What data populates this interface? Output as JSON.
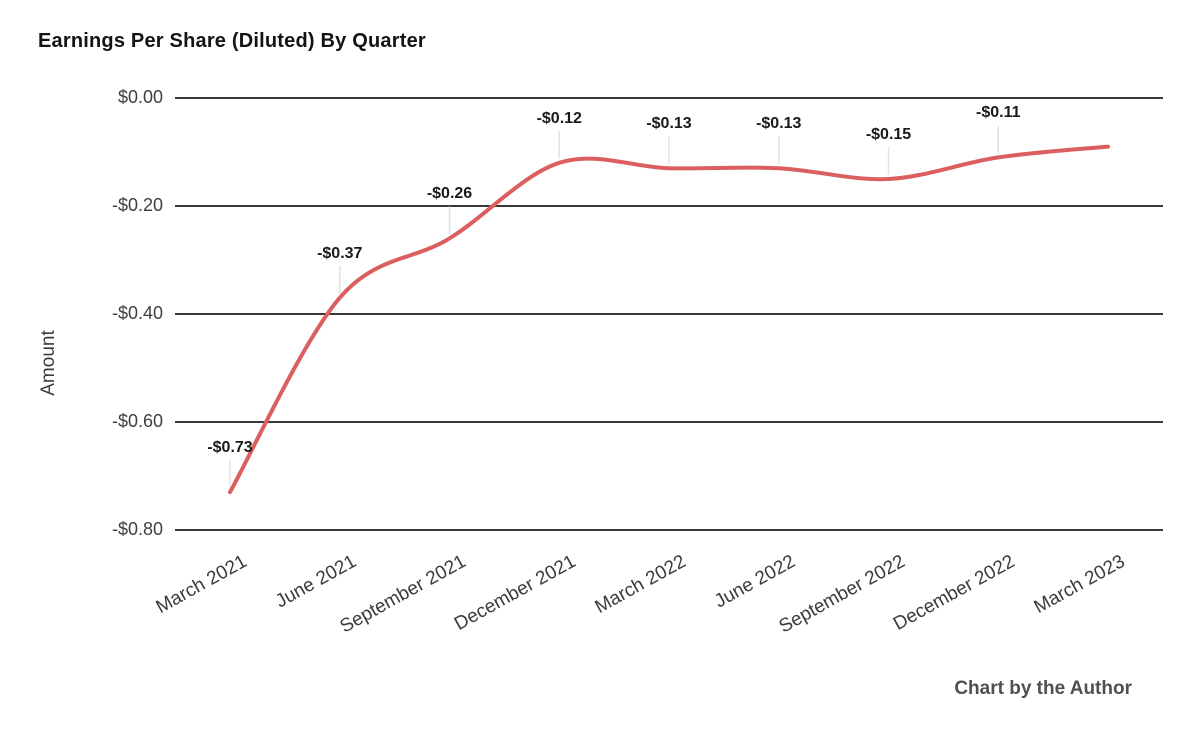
{
  "chart": {
    "title": "Earnings Per Share (Diluted) By Quarter",
    "y_axis_title": "Amount",
    "credit": "Chart by the Author",
    "colors": {
      "line": "#db5f5f",
      "gridline": "#383838",
      "leader_line": "#e2e2e2",
      "axis_text": "#3f3f3f",
      "data_label_text": "#1a1a1a"
    }
  },
  "chart_data": {
    "type": "line",
    "title": "Earnings Per Share (Diluted) By Quarter",
    "xlabel": "",
    "ylabel": "Amount",
    "categories": [
      "March 2021",
      "June 2021",
      "September 2021",
      "December 2021",
      "March 2022",
      "June 2022",
      "September 2022",
      "December 2022",
      "March 2023"
    ],
    "values": [
      -0.73,
      -0.37,
      -0.26,
      -0.12,
      -0.13,
      -0.13,
      -0.15,
      -0.11,
      -0.09
    ],
    "data_labels": [
      "-$0.73",
      "-$0.37",
      "-$0.26",
      "-$0.12",
      "-$0.13",
      "-$0.13",
      "-$0.15",
      "-$0.11",
      null
    ],
    "y_ticks": [
      {
        "value": 0.0,
        "label": "$0.00"
      },
      {
        "value": -0.2,
        "label": "-$0.20"
      },
      {
        "value": -0.4,
        "label": "-$0.40"
      },
      {
        "value": -0.6,
        "label": "-$0.60"
      },
      {
        "value": -0.8,
        "label": "-$0.80"
      }
    ],
    "ylim": [
      -0.8,
      0
    ],
    "grid": true,
    "legend_position": "none",
    "curve": "smooth"
  }
}
